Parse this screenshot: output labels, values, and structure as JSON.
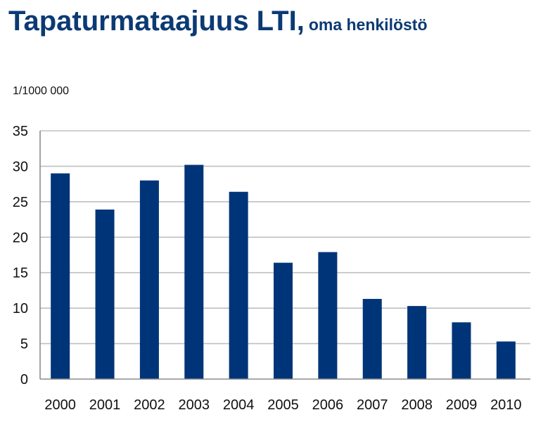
{
  "chart_data": {
    "type": "bar",
    "title": "Tapaturmataajuus LTI,",
    "subtitle": "oma henkilöstö",
    "unit_label": "1/1000 000",
    "xlabel": "",
    "ylabel": "1/1000 000",
    "categories": [
      "2000",
      "2001",
      "2002",
      "2003",
      "2004",
      "2005",
      "2006",
      "2007",
      "2008",
      "2009",
      "2010"
    ],
    "values": [
      29.0,
      23.9,
      28.0,
      30.2,
      26.4,
      16.4,
      17.9,
      11.3,
      10.3,
      8.0,
      5.3
    ],
    "ylim": [
      0,
      35
    ],
    "yticks": [
      0,
      5,
      10,
      15,
      20,
      25,
      30,
      35
    ],
    "grid": true,
    "legend": "none",
    "colors": {
      "bar": "#003478",
      "grid": "#bfbfbf",
      "title": "#0b3a74",
      "axis": "#8c8c8c"
    }
  }
}
